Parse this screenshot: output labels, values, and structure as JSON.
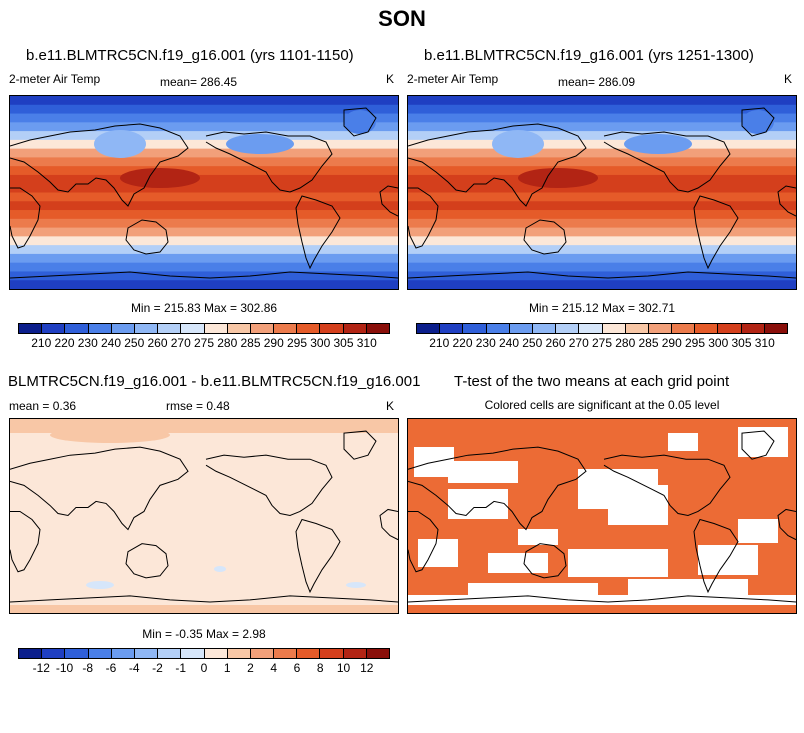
{
  "title": "SON",
  "panels": [
    {
      "id": "p1",
      "title": "b.e11.BLMTRC5CN.f19_g16.001 (yrs 1101-1150)",
      "left_label": "2-meter Air Temp",
      "mean_label": "mean= 286.45",
      "units": "K",
      "minmax": "Min = 215.83 Max = 302.86"
    },
    {
      "id": "p2",
      "title": "b.e11.BLMTRC5CN.f19_g16.001 (yrs 1251-1300)",
      "left_label": "2-meter Air Temp",
      "mean_label": "mean= 286.09",
      "units": "K",
      "minmax": "Min = 215.12 Max = 302.71"
    },
    {
      "id": "p3",
      "title": "BLMTRC5CN.f19_g16.001 - b.e11.BLMTRC5CN.f19_g16.001",
      "mean_label": "mean =   0.36",
      "rmse_label": "rmse =   0.48",
      "units": "K",
      "minmax": "Min =  -0.35 Max =   2.98"
    },
    {
      "id": "p4",
      "title": "T-test of the two means at each grid point",
      "subtitle": "Colored cells are significant at the 0.05 level"
    }
  ],
  "colorbars": {
    "temperature": {
      "ticks": [
        "210",
        "220",
        "230",
        "240",
        "250",
        "260",
        "270",
        "275",
        "280",
        "285",
        "290",
        "295",
        "300",
        "305",
        "310"
      ],
      "colors": [
        "#0b1e8c",
        "#1f3fc2",
        "#2f5fd9",
        "#4a7fe8",
        "#6b9cf0",
        "#8fb7f5",
        "#b3cff7",
        "#d6e6fa",
        "#fce7d8",
        "#f8c7a6",
        "#f2a07a",
        "#ec7b4c",
        "#e55b29",
        "#d43f1c",
        "#b22414",
        "#8a0f0a"
      ]
    },
    "difference": {
      "ticks": [
        "-12",
        "-10",
        "-8",
        "-6",
        "-4",
        "-2",
        "-1",
        "0",
        "1",
        "2",
        "4",
        "6",
        "8",
        "10",
        "12"
      ],
      "colors": [
        "#0b1e8c",
        "#1f3fc2",
        "#2f5fd9",
        "#4a7fe8",
        "#6b9cf0",
        "#8fb7f5",
        "#b3cff7",
        "#d6e6fa",
        "#fce7d8",
        "#f8c7a6",
        "#f2a07a",
        "#ec7b4c",
        "#e55b29",
        "#d43f1c",
        "#b22414",
        "#8a0f0a"
      ]
    }
  },
  "ttest_color": "#ec6b35"
}
